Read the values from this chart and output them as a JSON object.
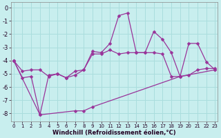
{
  "xlabel": "Windchill (Refroidissement éolien,°C)",
  "bg_color": "#c8eeee",
  "grid_color": "#aadddd",
  "line_color": "#993399",
  "xlim": [
    -0.3,
    23.3
  ],
  "ylim": [
    -8.6,
    0.4
  ],
  "yticks": [
    0,
    -1,
    -2,
    -3,
    -4,
    -5,
    -6,
    -7,
    -8
  ],
  "xticks": [
    0,
    1,
    2,
    3,
    4,
    5,
    6,
    7,
    8,
    9,
    10,
    11,
    12,
    13,
    14,
    15,
    16,
    17,
    18,
    19,
    20,
    21,
    22,
    23
  ],
  "series1_x": [
    0,
    1,
    2,
    3,
    4,
    5,
    6,
    7,
    8,
    9,
    10,
    11,
    12,
    13,
    14,
    15,
    16,
    17,
    18,
    19,
    20,
    21,
    22,
    23
  ],
  "series1_y": [
    -4.0,
    -4.8,
    -4.7,
    -4.7,
    -5.2,
    -5.0,
    -5.3,
    -4.8,
    -4.7,
    -3.5,
    -3.5,
    -3.2,
    -3.5,
    -3.4,
    -3.4,
    -3.4,
    -3.4,
    -3.5,
    -5.2,
    -5.2,
    -5.1,
    -4.7,
    -4.6,
    -4.6
  ],
  "series2_x": [
    0,
    1,
    2,
    3,
    4,
    5,
    6,
    7,
    8,
    9,
    10,
    11,
    12,
    13,
    14,
    15,
    16,
    17,
    18,
    19,
    20,
    21,
    22,
    23
  ],
  "series2_y": [
    -4.0,
    -5.3,
    -5.2,
    -8.1,
    -5.1,
    -5.0,
    -5.3,
    -5.1,
    -4.7,
    -3.3,
    -3.4,
    -2.7,
    -0.6,
    -0.4,
    -3.4,
    -3.4,
    -1.8,
    -2.4,
    -3.4,
    -5.2,
    -2.7,
    -2.7,
    -4.1,
    -4.7
  ],
  "series3_x": [
    0,
    3,
    7,
    8,
    9,
    19,
    23
  ],
  "series3_y": [
    -4.0,
    -8.1,
    -7.8,
    -7.8,
    -7.5,
    -5.2,
    -4.7
  ]
}
